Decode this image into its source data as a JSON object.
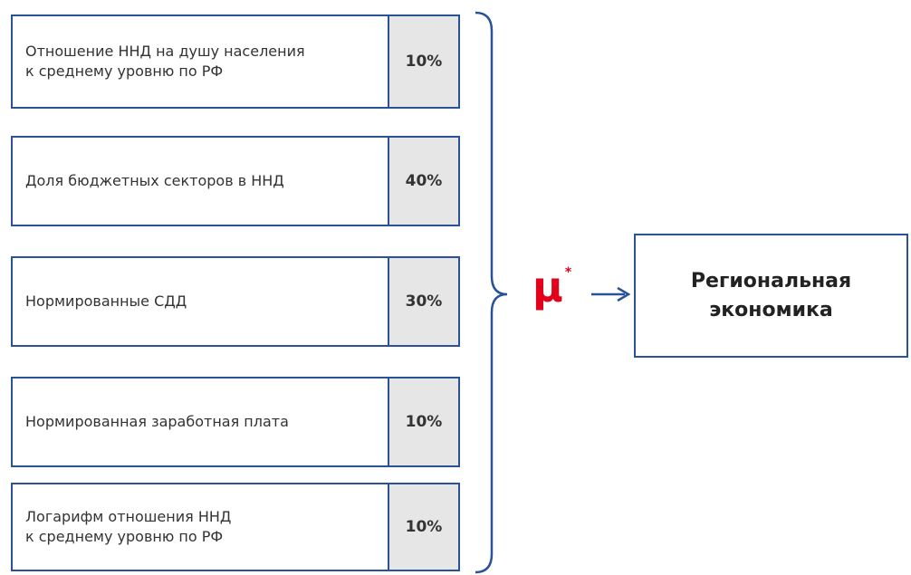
{
  "items": [
    {
      "lines": [
        "Отношение ННД на душу населения",
        "к среднему уровню по РФ"
      ],
      "weight": "10%"
    },
    {
      "lines": [
        "Доля бюджетных секторов в ННД"
      ],
      "weight": "40%"
    },
    {
      "lines": [
        "Нормированные СДД"
      ],
      "weight": "30%"
    },
    {
      "lines": [
        "Нормированная заработная плата"
      ],
      "weight": "10%"
    },
    {
      "lines": [
        "Логарифм отношения ННД",
        "к среднему уровню по РФ"
      ],
      "weight": "10%"
    }
  ],
  "symbol": {
    "letter": "μ",
    "mark": "*"
  },
  "result": {
    "lines": [
      "Региональная",
      "экономика"
    ]
  }
}
